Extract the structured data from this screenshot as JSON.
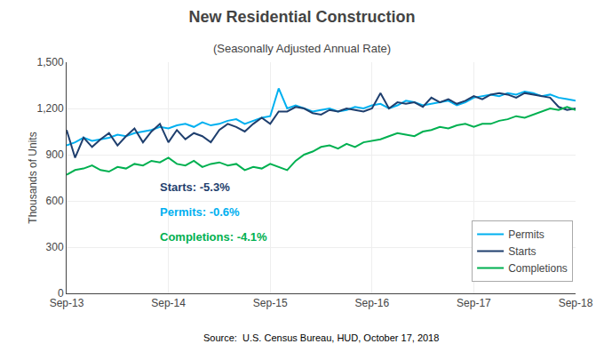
{
  "chart_data": {
    "type": "line",
    "title": "New Residential Construction",
    "subtitle": "(Seasonally Adjusted Annual Rate)",
    "ylabel": "Thousands of Units",
    "source": "Source:  U.S. Census Bureau, HUD, October 17, 2018",
    "categories": [
      "Sep-13",
      null,
      null,
      null,
      null,
      null,
      null,
      null,
      null,
      null,
      null,
      null,
      "Sep-14",
      null,
      null,
      null,
      null,
      null,
      null,
      null,
      null,
      null,
      null,
      null,
      "Sep-15",
      null,
      null,
      null,
      null,
      null,
      null,
      null,
      null,
      null,
      null,
      null,
      "Sep-16",
      null,
      null,
      null,
      null,
      null,
      null,
      null,
      null,
      null,
      null,
      null,
      "Sep-17",
      null,
      null,
      null,
      null,
      null,
      null,
      null,
      null,
      null,
      null,
      null,
      "Sep-18"
    ],
    "series": [
      {
        "name": "Permits",
        "color": "#00b0f0",
        "values": [
          960,
          980,
          1010,
          990,
          1000,
          1010,
          1030,
          1020,
          1040,
          1050,
          1060,
          1080,
          1070,
          1090,
          1100,
          1080,
          1110,
          1090,
          1100,
          1120,
          1130,
          1100,
          1120,
          1140,
          1150,
          1330,
          1200,
          1220,
          1200,
          1180,
          1190,
          1200,
          1180,
          1190,
          1210,
          1200,
          1220,
          1230,
          1200,
          1220,
          1250,
          1240,
          1220,
          1230,
          1240,
          1250,
          1220,
          1240,
          1270,
          1280,
          1290,
          1280,
          1300,
          1290,
          1310,
          1300,
          1280,
          1290,
          1270,
          1260,
          1250
        ]
      },
      {
        "name": "Starts",
        "color": "#1f3f6e",
        "values": [
          1060,
          880,
          1010,
          950,
          1000,
          1040,
          960,
          1020,
          1070,
          980,
          1050,
          1100,
          980,
          1060,
          1000,
          1040,
          1020,
          980,
          1060,
          1100,
          1080,
          1050,
          1100,
          1140,
          1100,
          1180,
          1180,
          1210,
          1200,
          1170,
          1160,
          1190,
          1180,
          1200,
          1190,
          1180,
          1200,
          1300,
          1200,
          1240,
          1230,
          1240,
          1210,
          1270,
          1240,
          1260,
          1230,
          1250,
          1280,
          1260,
          1290,
          1300,
          1290,
          1270,
          1300,
          1290,
          1280,
          1270,
          1210,
          1190,
          1200
        ]
      },
      {
        "name": "Completions",
        "color": "#00b050",
        "values": [
          770,
          800,
          810,
          830,
          800,
          790,
          820,
          810,
          840,
          830,
          860,
          850,
          880,
          840,
          830,
          860,
          820,
          840,
          850,
          830,
          840,
          800,
          820,
          810,
          840,
          820,
          800,
          860,
          900,
          920,
          950,
          960,
          940,
          970,
          950,
          980,
          990,
          1000,
          1020,
          1040,
          1030,
          1020,
          1050,
          1060,
          1080,
          1070,
          1090,
          1100,
          1080,
          1100,
          1100,
          1120,
          1130,
          1150,
          1140,
          1160,
          1180,
          1200,
          1190,
          1210,
          1190
        ]
      }
    ],
    "ylim": [
      0,
      1500
    ],
    "yticks": [
      0,
      300,
      600,
      900,
      {
        "value": 1200,
        "label": "1,200"
      },
      {
        "value": 1500,
        "label": "1,500"
      }
    ],
    "annotations": [
      {
        "text": "Starts: -5.3%",
        "color": "#1f3f6e"
      },
      {
        "text": "Permits: -0.6%",
        "color": "#00b0f0"
      },
      {
        "text": "Completions: -4.1%",
        "color": "#00b050"
      }
    ],
    "grid": true,
    "legend": "lower right"
  }
}
